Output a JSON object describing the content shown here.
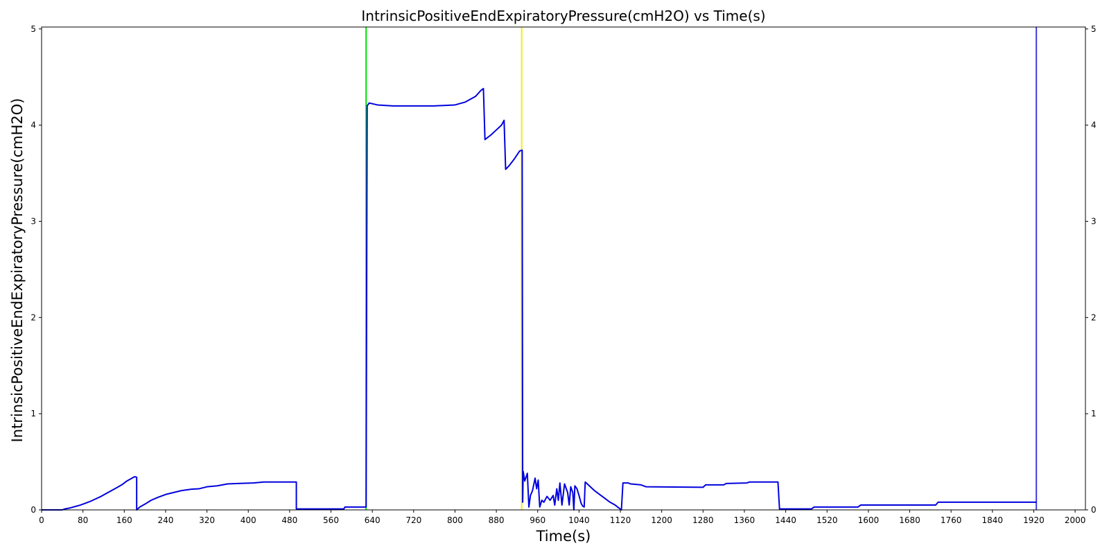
{
  "chart_data": {
    "type": "line",
    "title": "IntrinsicPositiveEndExpiratoryPressure(cmH2O) vs Time(s)",
    "xlabel": "Time(s)",
    "ylabel": "IntrinsicPositiveEndExpiratoryPressure(cmH2O)",
    "xlim": [
      0,
      2020
    ],
    "ylim": [
      0,
      5.02
    ],
    "x_ticks": [
      0,
      80,
      160,
      240,
      320,
      400,
      480,
      560,
      640,
      720,
      800,
      880,
      960,
      1040,
      1120,
      1200,
      1280,
      1360,
      1440,
      1520,
      1600,
      1680,
      1760,
      1840,
      1920,
      2000
    ],
    "y_ticks": [
      0,
      1,
      2,
      3,
      4,
      5
    ],
    "right_y_ticks": true,
    "grid": false,
    "colors": {
      "series": "#0000dd",
      "vline_green": "#00e000",
      "vline_yellow": "#f0f000",
      "vline_blue": "#3b3bdd"
    },
    "vertical_lines": [
      {
        "x": 628,
        "color": "#00e000"
      },
      {
        "x": 929,
        "color": "#f0f000"
      },
      {
        "x": 1925,
        "color": "#3b3bdd"
      }
    ],
    "series": [
      {
        "color": "#0000dd",
        "points": [
          [
            0,
            0
          ],
          [
            40,
            0
          ],
          [
            45,
            0.01
          ],
          [
            55,
            0.02
          ],
          [
            65,
            0.035
          ],
          [
            75,
            0.05
          ],
          [
            85,
            0.07
          ],
          [
            95,
            0.09
          ],
          [
            105,
            0.115
          ],
          [
            115,
            0.14
          ],
          [
            125,
            0.17
          ],
          [
            135,
            0.2
          ],
          [
            145,
            0.23
          ],
          [
            155,
            0.26
          ],
          [
            165,
            0.3
          ],
          [
            175,
            0.33
          ],
          [
            180,
            0.345
          ],
          [
            184,
            0.34
          ],
          [
            184,
            0.0
          ],
          [
            190,
            0.03
          ],
          [
            200,
            0.06
          ],
          [
            212,
            0.1
          ],
          [
            225,
            0.13
          ],
          [
            240,
            0.16
          ],
          [
            255,
            0.18
          ],
          [
            270,
            0.2
          ],
          [
            290,
            0.215
          ],
          [
            305,
            0.22
          ],
          [
            320,
            0.24
          ],
          [
            340,
            0.25
          ],
          [
            360,
            0.27
          ],
          [
            380,
            0.275
          ],
          [
            410,
            0.28
          ],
          [
            430,
            0.29
          ],
          [
            470,
            0.29
          ],
          [
            493,
            0.29
          ],
          [
            493,
            0.01
          ],
          [
            550,
            0.01
          ],
          [
            585,
            0.01
          ],
          [
            587,
            0.03
          ],
          [
            625,
            0.03
          ],
          [
            628,
            0.03
          ],
          [
            630,
            4.2
          ],
          [
            634,
            4.23
          ],
          [
            650,
            4.21
          ],
          [
            680,
            4.2
          ],
          [
            720,
            4.2
          ],
          [
            760,
            4.2
          ],
          [
            800,
            4.21
          ],
          [
            820,
            4.24
          ],
          [
            840,
            4.3
          ],
          [
            850,
            4.36
          ],
          [
            855,
            4.38
          ],
          [
            858,
            3.85
          ],
          [
            870,
            3.9
          ],
          [
            880,
            3.95
          ],
          [
            890,
            4.0
          ],
          [
            895,
            4.05
          ],
          [
            898,
            3.54
          ],
          [
            905,
            3.58
          ],
          [
            915,
            3.65
          ],
          [
            925,
            3.73
          ],
          [
            930,
            3.74
          ],
          [
            931,
            0.08
          ],
          [
            932,
            0.4
          ],
          [
            935,
            0.3
          ],
          [
            940,
            0.38
          ],
          [
            943,
            0.03
          ],
          [
            946,
            0.15
          ],
          [
            950,
            0.2
          ],
          [
            955,
            0.33
          ],
          [
            958,
            0.22
          ],
          [
            961,
            0.31
          ],
          [
            964,
            0.03
          ],
          [
            968,
            0.1
          ],
          [
            972,
            0.08
          ],
          [
            978,
            0.14
          ],
          [
            984,
            0.1
          ],
          [
            990,
            0.15
          ],
          [
            993,
            0.05
          ],
          [
            997,
            0.22
          ],
          [
            1000,
            0.1
          ],
          [
            1003,
            0.28
          ],
          [
            1007,
            0.05
          ],
          [
            1012,
            0.27
          ],
          [
            1018,
            0.18
          ],
          [
            1021,
            0.05
          ],
          [
            1024,
            0.24
          ],
          [
            1028,
            0.18
          ],
          [
            1030,
            0.0
          ],
          [
            1032,
            0.25
          ],
          [
            1036,
            0.22
          ],
          [
            1040,
            0.15
          ],
          [
            1044,
            0.07
          ],
          [
            1047,
            0.04
          ],
          [
            1050,
            0.03
          ],
          [
            1052,
            0.29
          ],
          [
            1060,
            0.25
          ],
          [
            1070,
            0.2
          ],
          [
            1080,
            0.16
          ],
          [
            1090,
            0.12
          ],
          [
            1100,
            0.08
          ],
          [
            1110,
            0.05
          ],
          [
            1117,
            0.02
          ],
          [
            1122,
            0.0
          ],
          [
            1125,
            0.28
          ],
          [
            1135,
            0.28
          ],
          [
            1140,
            0.27
          ],
          [
            1160,
            0.26
          ],
          [
            1170,
            0.24
          ],
          [
            1280,
            0.235
          ],
          [
            1285,
            0.26
          ],
          [
            1320,
            0.26
          ],
          [
            1325,
            0.275
          ],
          [
            1365,
            0.28
          ],
          [
            1370,
            0.29
          ],
          [
            1425,
            0.29
          ],
          [
            1428,
            0.01
          ],
          [
            1490,
            0.01
          ],
          [
            1495,
            0.03
          ],
          [
            1580,
            0.03
          ],
          [
            1585,
            0.05
          ],
          [
            1730,
            0.05
          ],
          [
            1735,
            0.08
          ],
          [
            1925,
            0.08
          ]
        ]
      }
    ]
  }
}
